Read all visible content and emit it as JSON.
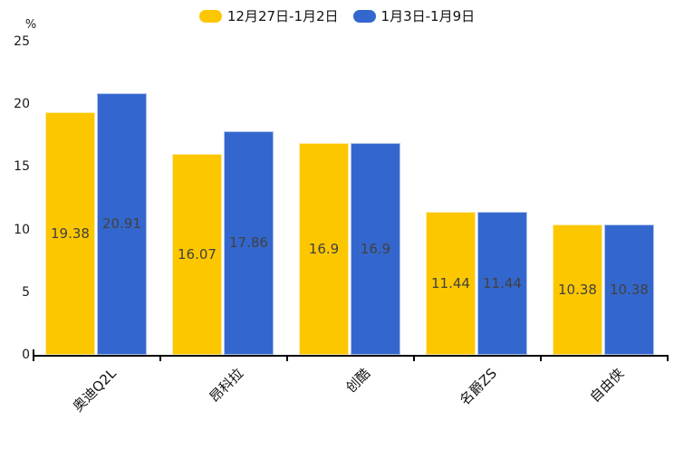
{
  "chart_data": {
    "type": "bar",
    "categories": [
      "奥迪Q2L",
      "昂科拉",
      "创酷",
      "名爵ZS",
      "自由侠"
    ],
    "series": [
      {
        "name": "12月27日-1月2日",
        "color": "#FDC700",
        "edge": "#FFE9A0",
        "values": [
          19.38,
          16.07,
          16.9,
          11.44,
          10.38
        ]
      },
      {
        "name": "1月3日-1月9日",
        "color": "#3467CD",
        "edge": "#ADC2EC",
        "values": [
          20.91,
          17.86,
          16.9,
          11.44,
          10.38
        ]
      }
    ],
    "title": "",
    "xlabel": "",
    "ylabel": "%",
    "ylim": [
      0,
      25
    ],
    "yticks": [
      0,
      5,
      10,
      15,
      20,
      25
    ],
    "grid": false,
    "legend_position": "top",
    "value_labels": "inside-center",
    "value_label_color": "#414141",
    "axis_color": "#000000",
    "text_color": "#1a1a1a",
    "background": "#ffffff"
  }
}
